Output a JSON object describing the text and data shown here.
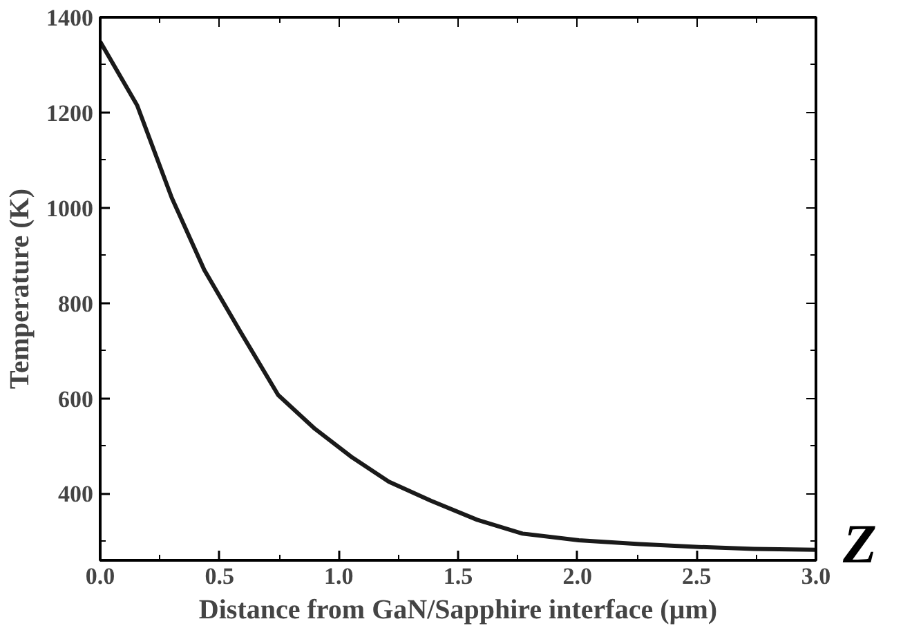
{
  "chart_data": {
    "type": "line",
    "xlabel": "Distance from GaN/Sapphire interface (µm)",
    "ylabel": "Temperature (K)",
    "x": [
      0,
      0.155,
      0.3,
      0.436,
      0.59,
      0.746,
      0.9,
      1.056,
      1.21,
      1.386,
      1.58,
      1.77,
      2.006,
      2.26,
      2.51,
      2.74,
      3.0
    ],
    "series": [
      {
        "color": "#1a1a1a",
        "values": [
          1349,
          1215,
          1021,
          870,
          738,
          607,
          536,
          476,
          425,
          385,
          345,
          316,
          302,
          294,
          288,
          284,
          282
        ]
      }
    ],
    "xlim": [
      0,
      3.0
    ],
    "xticks": [
      {
        "value": 0,
        "label": "0.0"
      },
      0.5,
      {
        "value": 1,
        "label": "1.0"
      },
      1.5,
      {
        "value": 2,
        "label": "2.0"
      },
      2.5,
      {
        "value": 3,
        "label": "3.0"
      }
    ],
    "ylim": [
      260,
      1400
    ],
    "yticks": [
      400,
      600,
      800,
      1000,
      1200,
      1400
    ],
    "grid": false,
    "marker": "none",
    "line_style": "solid",
    "annotations": [
      "Z"
    ]
  }
}
